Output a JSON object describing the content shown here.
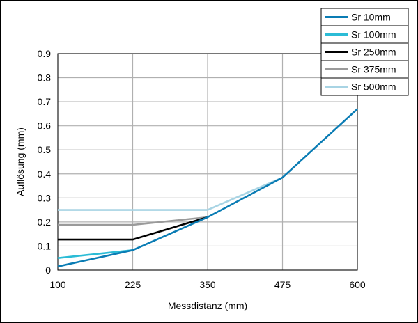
{
  "chart_data": {
    "type": "line",
    "title": "",
    "xlabel": "Messdistanz (mm)",
    "ylabel": "Auflösung (mm)",
    "xlim": [
      100,
      600
    ],
    "ylim": [
      0,
      0.9
    ],
    "x_ticks": [
      "100",
      "225",
      "350",
      "475",
      "600"
    ],
    "y_ticks": [
      "0",
      "0.1",
      "0.2",
      "0.3",
      "0.4",
      "0.5",
      "0.6",
      "0.7",
      "0.8",
      "0.9"
    ],
    "grid": true,
    "legend_position": "top-right",
    "series": [
      {
        "name": "Sr 10mm",
        "color": "#0a7cb4",
        "points": [
          [
            100,
            0.015
          ],
          [
            225,
            0.083
          ],
          [
            350,
            0.22
          ],
          [
            475,
            0.385
          ],
          [
            600,
            0.67
          ]
        ]
      },
      {
        "name": "Sr 100mm",
        "color": "#2bbcd6",
        "points": [
          [
            100,
            0.05
          ],
          [
            225,
            0.083
          ]
        ]
      },
      {
        "name": "Sr 250mm",
        "color": "#000000",
        "points": [
          [
            100,
            0.127
          ],
          [
            225,
            0.127
          ],
          [
            350,
            0.22
          ]
        ]
      },
      {
        "name": "Sr 375mm",
        "color": "#9a9a9a",
        "points": [
          [
            100,
            0.188
          ],
          [
            225,
            0.188
          ],
          [
            350,
            0.22
          ]
        ]
      },
      {
        "name": "Sr 500mm",
        "color": "#a8d4e4",
        "points": [
          [
            100,
            0.25
          ],
          [
            225,
            0.25
          ],
          [
            350,
            0.25
          ],
          [
            475,
            0.385
          ]
        ]
      }
    ]
  }
}
